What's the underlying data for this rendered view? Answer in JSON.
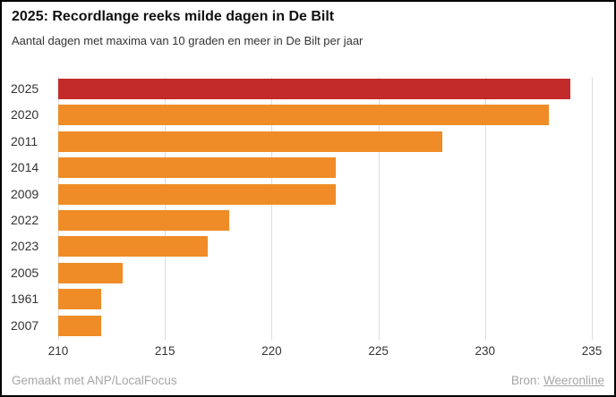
{
  "header": {
    "title": "2025: Recordlange reeks milde dagen in De Bilt",
    "subtitle": "Aantal dagen met maxima van 10 graden en meer in De Bilt per jaar"
  },
  "footer": {
    "credit": "Gemaakt met ANP/LocalFocus",
    "source_label": "Bron:",
    "source_link": "Weeronline"
  },
  "chart_data": {
    "type": "bar",
    "orientation": "horizontal",
    "title": "2025: Recordlange reeks milde dagen in De Bilt",
    "subtitle": "Aantal dagen met maxima van 10 graden en meer in De Bilt per jaar",
    "categories": [
      "2025",
      "2020",
      "2011",
      "2014",
      "2009",
      "2022",
      "2023",
      "2005",
      "1961",
      "2007"
    ],
    "values": [
      234,
      233,
      228,
      223,
      223,
      218,
      217,
      213,
      212,
      212
    ],
    "xlabel": "",
    "ylabel": "",
    "xlim": [
      210,
      235
    ],
    "xticks": [
      210,
      215,
      220,
      225,
      230,
      235
    ],
    "grid": true,
    "legend": false,
    "highlight_index": 0,
    "colors": {
      "highlight": "#c32a2a",
      "bar": "#ef8c28",
      "grid": "#dcdcdc",
      "tick_text": "#333333"
    }
  }
}
